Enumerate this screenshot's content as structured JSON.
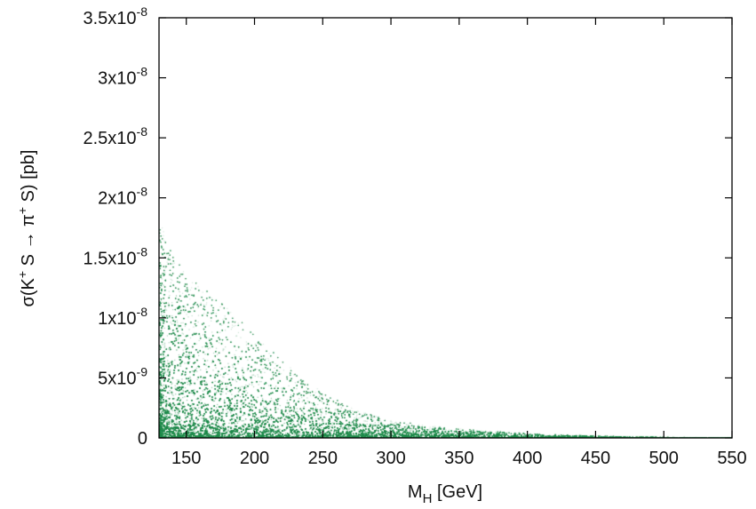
{
  "chart_data": {
    "type": "scatter",
    "title": "",
    "xlabel": {
      "main": "M",
      "sub": "H",
      "unit": "[GeV]"
    },
    "ylabel": {
      "pre": "σ(K",
      "sup1": "+",
      "mid": " S → π",
      "sup2": "+",
      "post": " S) [pb]"
    },
    "xlim": [
      130,
      550
    ],
    "ylim": [
      0,
      3.5e-08
    ],
    "xticks": [
      150,
      200,
      250,
      300,
      350,
      400,
      450,
      500,
      550
    ],
    "xtick_labels": [
      "150",
      "200",
      "250",
      "300",
      "350",
      "400",
      "450",
      "500",
      "550"
    ],
    "yticks": [
      0,
      5e-09,
      1e-08,
      1.5e-08,
      2e-08,
      2.5e-08,
      3e-08,
      3.5e-08
    ],
    "ytick_labels": [
      {
        "mant": "0",
        "exp": ""
      },
      {
        "mant": "5x10",
        "exp": "-9"
      },
      {
        "mant": "1x10",
        "exp": "-8"
      },
      {
        "mant": "1.5x10",
        "exp": "-8"
      },
      {
        "mant": "2x10",
        "exp": "-8"
      },
      {
        "mant": "2.5x10",
        "exp": "-8"
      },
      {
        "mant": "3x10",
        "exp": "-8"
      },
      {
        "mant": "3.5x10",
        "exp": "-8"
      }
    ],
    "series": [
      {
        "marker_color": "#1e8a4a",
        "envelope": {
          "x": [
            130,
            150,
            175,
            200,
            225,
            250,
            275,
            300,
            325,
            350,
            400,
            450,
            500,
            550
          ],
          "y_max": [
            1.8e-08,
            1.35e-08,
            1.15e-08,
            8.5e-09,
            6e-09,
            3.8e-09,
            2.3e-09,
            1.5e-09,
            1.1e-09,
            8e-10,
            4e-10,
            2e-10,
            1e-10,
            6e-11
          ]
        }
      }
    ],
    "grid": false,
    "legend": "none"
  }
}
